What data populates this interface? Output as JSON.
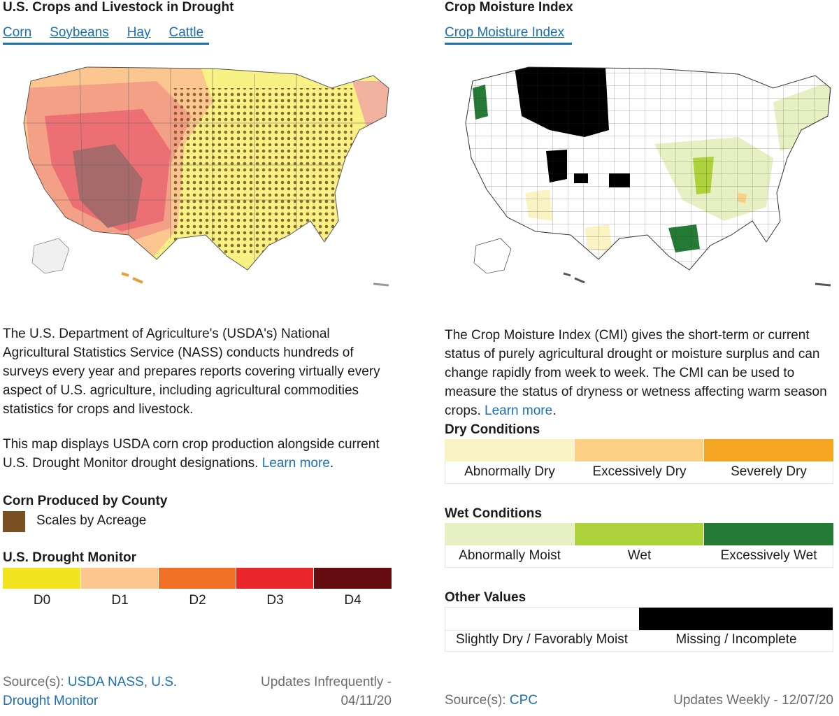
{
  "left": {
    "title": "U.S. Crops and Livestock in Drought",
    "tabs": [
      "Corn",
      "Soybeans",
      "Hay",
      "Cattle"
    ],
    "para1": "The U.S. Department of Agriculture's (USDA's) National Agricultural Statistics Service (NASS) conducts hundreds of surveys every year and prepares reports covering virtually every aspect of U.S. agriculture, including agricultural commodities statistics for crops and livestock.",
    "para2_text": "This map displays USDA corn crop production alongside current U.S. Drought Monitor drought designations.",
    "para2_link": "Learn more",
    "corn_header": "Corn Produced by County",
    "corn_legend_label": "Scales by Acreage",
    "corn_color": "#7a4f22",
    "drought_header": "U.S. Drought Monitor",
    "drought_levels": [
      {
        "label": "D0",
        "color": "#f2e51f"
      },
      {
        "label": "D1",
        "color": "#fbc690"
      },
      {
        "label": "D2",
        "color": "#f07125"
      },
      {
        "label": "D3",
        "color": "#e8262b"
      },
      {
        "label": "D4",
        "color": "#650c10"
      }
    ],
    "source_label": "Source(s):",
    "source_link1": "USDA NASS",
    "source_link2": "U.S. Drought Monitor",
    "updates": "Updates Infrequently",
    "date": "04/11/20"
  },
  "right": {
    "title": "Crop Moisture Index",
    "tab": "Crop Moisture Index",
    "para_text": "The Crop Moisture Index (CMI) gives the short-term or current status of purely agricultural drought or moisture surplus and can change rapidly from week to week. The CMI can be used to measure the status of dryness or wetness affecting warm season crops.",
    "para_link": "Learn more",
    "dry_header": "Dry Conditions",
    "dry": [
      {
        "label": "Abnormally Dry",
        "color": "#faf3c4"
      },
      {
        "label": "Excessively Dry",
        "color": "#fbd085"
      },
      {
        "label": "Severely Dry",
        "color": "#f5a623"
      }
    ],
    "wet_header": "Wet Conditions",
    "wet": [
      {
        "label": "Abnormally Moist",
        "color": "#e7f0c3"
      },
      {
        "label": "Wet",
        "color": "#aed23b"
      },
      {
        "label": "Excessively Wet",
        "color": "#257a35"
      }
    ],
    "other_header": "Other Values",
    "other": [
      {
        "label": "Slightly Dry / Favorably Moist",
        "color": "#ffffff"
      },
      {
        "label": "Missing / Incomplete",
        "color": "#000000"
      }
    ],
    "source_label": "Source(s):",
    "source_link": "CPC",
    "updates": "Updates Weekly",
    "date": "12/07/20"
  }
}
